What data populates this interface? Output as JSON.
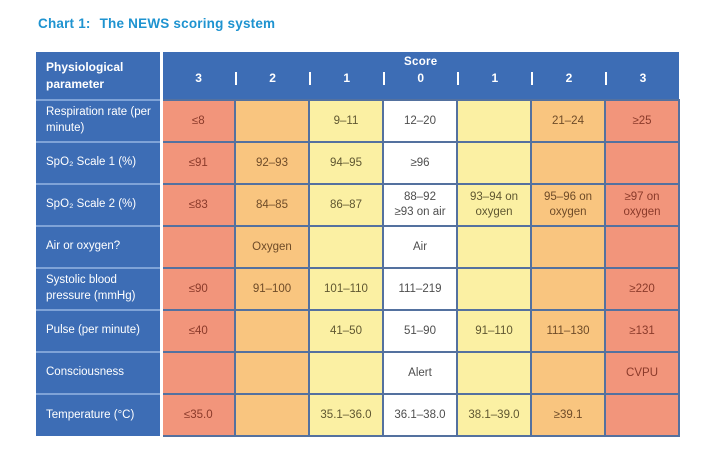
{
  "title": {
    "prefix": "Chart 1:",
    "text": "The NEWS scoring system"
  },
  "chart_data": {
    "type": "table",
    "title": "Chart 1: The NEWS scoring system",
    "corner_header": "Physiological parameter",
    "score_header": {
      "label": "Score",
      "columns": [
        "3",
        "2",
        "1",
        "0",
        "1",
        "2",
        "3"
      ]
    },
    "column_score_colors": [
      "#f2957b",
      "#f9c57f",
      "#fbf0a3",
      "#ffffff",
      "#fbf0a3",
      "#f9c57f",
      "#f2957b"
    ],
    "rows": [
      {
        "label": "Respiration rate (per minute)",
        "cells": [
          "≤8",
          "",
          "9–11",
          "12–20",
          "",
          "21–24",
          "≥25"
        ]
      },
      {
        "label": "SpO₂ Scale 1 (%)",
        "cells": [
          "≤91",
          "92–93",
          "94–95",
          "≥96",
          "",
          "",
          ""
        ]
      },
      {
        "label": "SpO₂ Scale 2 (%)",
        "cells": [
          "≤83",
          "84–85",
          "86–87",
          "88–92\n≥93 on air",
          "93–94 on\noxygen",
          "95–96 on\noxygen",
          "≥97 on\noxygen"
        ]
      },
      {
        "label": "Air or oxygen?",
        "cells": [
          "",
          "Oxygen",
          "",
          "Air",
          "",
          "",
          ""
        ]
      },
      {
        "label": "Systolic blood pressure (mmHg)",
        "cells": [
          "≤90",
          "91–100",
          "101–110",
          "111–219",
          "",
          "",
          "≥220"
        ]
      },
      {
        "label": "Pulse (per minute)",
        "cells": [
          "≤40",
          "",
          "41–50",
          "51–90",
          "91–110",
          "111–130",
          "≥131"
        ]
      },
      {
        "label": "Consciousness",
        "cells": [
          "",
          "",
          "",
          "Alert",
          "",
          "",
          "CVPU"
        ]
      },
      {
        "label": "Temperature (°C)",
        "cells": [
          "≤35.0",
          "",
          "35.1–36.0",
          "36.1–38.0",
          "38.1–39.0",
          "≥39.1",
          ""
        ]
      }
    ],
    "colors": {
      "title_blue": "#1e93d0",
      "header_blue": "#3d6db5",
      "cell_border": "#54719f",
      "label_divider": "#7fa3d7",
      "score_3": "#f2957b",
      "score_2": "#f9c57f",
      "score_1": "#fbf0a3",
      "score_0": "#ffffff"
    }
  }
}
